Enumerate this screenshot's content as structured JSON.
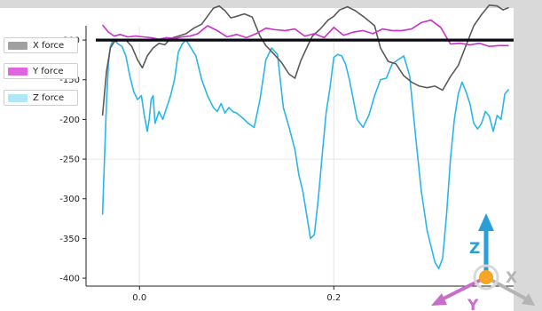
{
  "chart_data": {
    "type": "line",
    "title": "",
    "xlabel": "",
    "ylabel": "",
    "xlim": [
      -0.055,
      0.385
    ],
    "ylim": [
      -410,
      -82
    ],
    "x_ticks": [
      {
        "value": 0.0,
        "label": "0.0"
      },
      {
        "value": 0.2,
        "label": "0.2"
      }
    ],
    "y_ticks": [
      {
        "value": -100,
        "label": "-100"
      },
      {
        "value": -150,
        "label": "-150"
      },
      {
        "value": -200,
        "label": "-200"
      },
      {
        "value": -250,
        "label": "-250"
      },
      {
        "value": -300,
        "label": "-300"
      },
      {
        "value": -350,
        "label": "-350"
      },
      {
        "value": -400,
        "label": "-400"
      }
    ],
    "grid": true,
    "legend_position": "top-left",
    "series": [
      {
        "name": "X force",
        "color": "#5a5a5a",
        "legend_color": "#a0a0a0",
        "x": [
          -0.038,
          -0.034,
          -0.03,
          -0.026,
          -0.02,
          -0.014,
          -0.008,
          -0.002,
          0.003,
          0.008,
          0.014,
          0.02,
          0.026,
          0.032,
          0.04,
          0.048,
          0.056,
          0.064,
          0.07,
          0.076,
          0.082,
          0.088,
          0.094,
          0.1,
          0.108,
          0.116,
          0.124,
          0.13,
          0.138,
          0.146,
          0.154,
          0.16,
          0.166,
          0.172,
          0.178,
          0.186,
          0.194,
          0.2,
          0.206,
          0.214,
          0.222,
          0.23,
          0.236,
          0.242,
          0.248,
          0.256,
          0.264,
          0.272,
          0.28,
          0.288,
          0.296,
          0.304,
          0.312,
          0.32,
          0.328,
          0.336,
          0.344,
          0.352,
          0.36,
          0.368,
          0.374,
          0.38
        ],
        "y": [
          -195,
          -140,
          -110,
          -102,
          -100,
          -100,
          -108,
          -125,
          -135,
          -120,
          -110,
          -104,
          -106,
          -98,
          -95,
          -92,
          -85,
          -80,
          -70,
          -60,
          -57,
          -63,
          -72,
          -70,
          -67,
          -71,
          -95,
          -107,
          -117,
          -128,
          -143,
          -148,
          -126,
          -110,
          -95,
          -86,
          -75,
          -70,
          -62,
          -58,
          -63,
          -70,
          -76,
          -82,
          -110,
          -127,
          -130,
          -145,
          -153,
          -158,
          -160,
          -158,
          -163,
          -146,
          -132,
          -107,
          -82,
          -68,
          -56,
          -57,
          -62,
          -59
        ]
      },
      {
        "name": "Y force",
        "color": "#c832c8",
        "legend_color": "#e066e0",
        "x": [
          -0.038,
          -0.032,
          -0.026,
          -0.02,
          -0.012,
          -0.004,
          0.004,
          0.012,
          0.02,
          0.028,
          0.036,
          0.044,
          0.052,
          0.06,
          0.07,
          0.08,
          0.09,
          0.1,
          0.11,
          0.12,
          0.13,
          0.14,
          0.15,
          0.16,
          0.17,
          0.18,
          0.19,
          0.2,
          0.21,
          0.22,
          0.23,
          0.24,
          0.25,
          0.26,
          0.27,
          0.28,
          0.29,
          0.3,
          0.31,
          0.32,
          0.33,
          0.34,
          0.35,
          0.36,
          0.37,
          0.38
        ],
        "y": [
          -81,
          -90,
          -95,
          -93,
          -96,
          -95,
          -96,
          -97,
          -99,
          -97,
          -98,
          -96,
          -95,
          -92,
          -82,
          -88,
          -96,
          -93,
          -97,
          -92,
          -85,
          -87,
          -88,
          -86,
          -95,
          -92,
          -97,
          -84,
          -94,
          -90,
          -88,
          -92,
          -86,
          -88,
          -88,
          -86,
          -78,
          -75,
          -84,
          -105,
          -104,
          -106,
          -104,
          -108,
          -107,
          -107
        ]
      },
      {
        "name": "Z force",
        "color": "#2bb5e8",
        "legend_color": "#aee7f5",
        "x": [
          -0.038,
          -0.036,
          -0.034,
          -0.032,
          -0.03,
          -0.028,
          -0.026,
          -0.022,
          -0.018,
          -0.014,
          -0.01,
          -0.006,
          -0.002,
          0.002,
          0.005,
          0.008,
          0.01,
          0.012,
          0.014,
          0.016,
          0.02,
          0.024,
          0.028,
          0.032,
          0.036,
          0.04,
          0.044,
          0.048,
          0.052,
          0.058,
          0.064,
          0.07,
          0.076,
          0.08,
          0.084,
          0.088,
          0.092,
          0.096,
          0.1,
          0.106,
          0.112,
          0.118,
          0.124,
          0.13,
          0.136,
          0.142,
          0.148,
          0.154,
          0.16,
          0.164,
          0.168,
          0.172,
          0.176,
          0.18,
          0.184,
          0.188,
          0.192,
          0.196,
          0.2,
          0.204,
          0.208,
          0.212,
          0.216,
          0.22,
          0.224,
          0.23,
          0.236,
          0.242,
          0.248,
          0.254,
          0.26,
          0.266,
          0.272,
          0.278,
          0.284,
          0.29,
          0.296,
          0.3,
          0.304,
          0.308,
          0.312,
          0.316,
          0.32,
          0.324,
          0.328,
          0.332,
          0.336,
          0.34,
          0.344,
          0.348,
          0.352,
          0.356,
          0.36,
          0.364,
          0.368,
          0.372,
          0.376,
          0.38
        ],
        "y": [
          -320,
          -250,
          -180,
          -130,
          -108,
          -102,
          -100,
          -105,
          -108,
          -120,
          -145,
          -165,
          -175,
          -170,
          -195,
          -215,
          -200,
          -175,
          -170,
          -205,
          -190,
          -200,
          -185,
          -170,
          -150,
          -115,
          -105,
          -100,
          -108,
          -120,
          -150,
          -170,
          -185,
          -190,
          -180,
          -192,
          -185,
          -190,
          -192,
          -198,
          -205,
          -210,
          -175,
          -125,
          -110,
          -118,
          -185,
          -210,
          -238,
          -270,
          -290,
          -320,
          -350,
          -345,
          -300,
          -245,
          -192,
          -160,
          -122,
          -118,
          -120,
          -130,
          -150,
          -175,
          -200,
          -210,
          -195,
          -170,
          -150,
          -148,
          -130,
          -125,
          -120,
          -145,
          -220,
          -290,
          -340,
          -360,
          -380,
          -388,
          -375,
          -320,
          -250,
          -200,
          -168,
          -153,
          -165,
          -180,
          -205,
          -212,
          -205,
          -190,
          -196,
          -215,
          -195,
          -200,
          -168,
          -162
        ]
      },
      {
        "name": "",
        "color": "#0a0a14",
        "x": [
          -0.045,
          0.385
        ],
        "y": [
          -100,
          -100
        ]
      }
    ]
  },
  "legend": [
    {
      "label": "X force",
      "color": "#a0a0a0"
    },
    {
      "label": "Y force",
      "color": "#e066e0"
    },
    {
      "label": "Z force",
      "color": "#aee7f5"
    }
  ],
  "axes_gizmo": {
    "x_label": "X",
    "y_label": "Y",
    "z_label": "Z",
    "x_color": "#b4b4b4",
    "y_color": "#c86ec8",
    "z_color": "#2a9ed6",
    "center_color": "#f5a623"
  }
}
